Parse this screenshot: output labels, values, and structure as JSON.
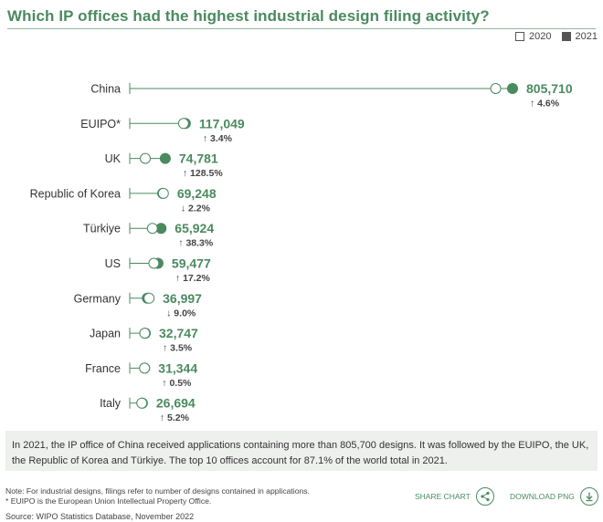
{
  "header": {
    "title": "Which IP offices had the highest industrial design filing activity?"
  },
  "legend": {
    "label_2020": "2020",
    "label_2021": "2021"
  },
  "chart_data": {
    "type": "dot-plot",
    "title": "Which IP offices had the highest industrial design filing activity?",
    "series_names": [
      "2020",
      "2021"
    ],
    "xlim": [
      0,
      805710
    ],
    "colors": {
      "accent": "#4a8a5f",
      "axis": "#4a8a5f"
    },
    "rows": [
      {
        "label": "China",
        "value_2021": 805710,
        "value_2020": 770246,
        "value_label": "805,710",
        "change": "↑ 4.6%"
      },
      {
        "label": "EUIPO*",
        "value_2021": 117049,
        "value_2020": 113190,
        "value_label": "117,049",
        "change": "↑ 3.4%"
      },
      {
        "label": "UK",
        "value_2021": 74781,
        "value_2020": 32736,
        "value_label": "74,781",
        "change": "↑ 128.5%"
      },
      {
        "label": "Republic of Korea",
        "value_2021": 69248,
        "value_2020": 70797,
        "value_label": "69,248",
        "change": "↓ 2.2%"
      },
      {
        "label": "Türkiye",
        "value_2021": 65924,
        "value_2020": 47671,
        "value_label": "65,924",
        "change": "↑ 38.3%"
      },
      {
        "label": "US",
        "value_2021": 59477,
        "value_2020": 50743,
        "value_label": "59,477",
        "change": "↑ 17.2%"
      },
      {
        "label": "Germany",
        "value_2021": 36997,
        "value_2020": 40661,
        "value_label": "36,997",
        "change": "↓ 9.0%"
      },
      {
        "label": "Japan",
        "value_2021": 32747,
        "value_2020": 31636,
        "value_label": "32,747",
        "change": "↑ 3.5%"
      },
      {
        "label": "France",
        "value_2021": 31344,
        "value_2020": 31188,
        "value_label": "31,344",
        "change": "↑ 0.5%"
      },
      {
        "label": "Italy",
        "value_2021": 26694,
        "value_2020": 25366,
        "value_label": "26,694",
        "change": "↑ 5.2%"
      }
    ]
  },
  "summary": {
    "text": "In 2021, the IP office of China received applications containing more than 805,700 designs. It was followed by the EUIPO, the UK, the Republic of Korea and Türkiye. The top 10 offices account for 87.1% of the world total in 2021."
  },
  "footer": {
    "note_line1": "Note: For industrial designs, filings refer to number of designs contained in applications.",
    "note_line2": "* EUIPO is the European Union Intellectual Property Office.",
    "source": "Source: WIPO Statistics Database, November 2022",
    "share_label": "SHARE CHART",
    "download_label": "DOWNLOAD PNG"
  }
}
